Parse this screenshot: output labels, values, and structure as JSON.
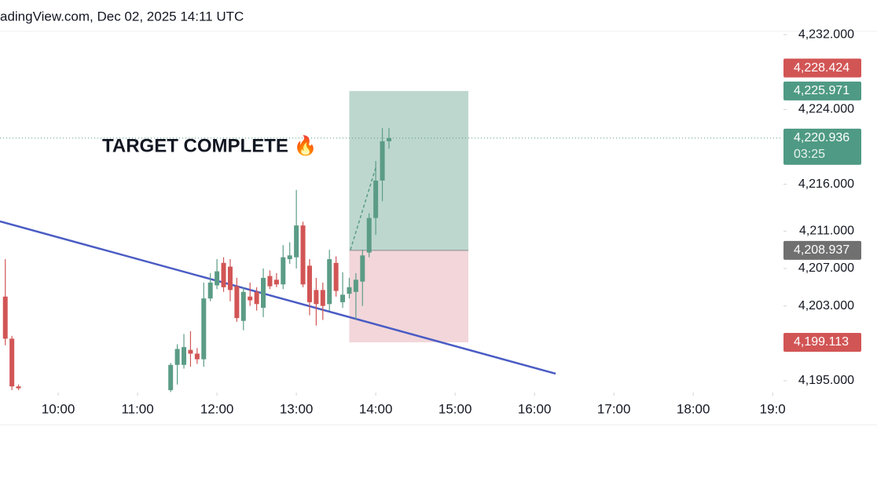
{
  "chart_data": {
    "type": "candlestick",
    "header": "adingView.com, Dec 02, 2025 14:11 UTC",
    "annotation": "TARGET COMPLETE 🔥",
    "up_color": "#5b9c86",
    "down_color": "#d25555",
    "x": [
      560,
      565,
      570,
      685,
      690,
      695,
      700,
      705,
      710,
      715,
      720,
      725,
      730,
      735,
      740,
      745,
      750,
      755,
      760,
      765,
      770,
      775,
      780,
      785,
      790,
      795,
      800,
      805,
      810,
      815,
      820,
      825,
      830,
      835,
      840,
      845,
      850
    ],
    "open": [
      4204.0,
      4199.5,
      4194.4,
      4194.0,
      4196.7,
      4196.7,
      4198.3,
      4197.9,
      4197.3,
      4203.8,
      4205.2,
      4207.6,
      4207.2,
      4205.1,
      4201.4,
      4204.0,
      4204.5,
      4202.8,
      4206.2,
      4205.8,
      4205.3,
      4208.0,
      4208.2,
      4211.6,
      4207.3,
      4204.7,
      4204.7,
      4203.2,
      4207.6,
      4203.4,
      4204.3,
      4204.5,
      4205.6,
      4208.7,
      4212.4,
      4216.4,
      4220.6
    ],
    "high": [
      4208.0,
      4199.8,
      4194.6,
      4196.9,
      4198.9,
      4200.0,
      4200.3,
      4198.5,
      4205.5,
      4206.5,
      4208.0,
      4208.2,
      4208.0,
      4206.0,
      4205.0,
      4205.5,
      4205.0,
      4207.0,
      4206.8,
      4206.5,
      4209.5,
      4209.8,
      4215.4,
      4212.0,
      4208.0,
      4206.0,
      4205.5,
      4209.0,
      4208.3,
      4206.6,
      4206.0,
      4206.5,
      4209.0,
      4212.9,
      4218.5,
      4222.0,
      4222.0
    ],
    "low": [
      4198.8,
      4194.0,
      4194.0,
      4193.8,
      4194.6,
      4196.3,
      4196.5,
      4196.8,
      4196.5,
      4203.5,
      4204.8,
      4204.5,
      4203.5,
      4201.3,
      4200.4,
      4203.0,
      4202.5,
      4201.8,
      4204.8,
      4205.0,
      4204.8,
      4207.5,
      4207.0,
      4205.0,
      4202.0,
      4200.9,
      4201.5,
      4202.5,
      4204.0,
      4202.8,
      4203.8,
      4201.5,
      4203.0,
      4208.2,
      4210.6,
      4214.2,
      4219.8
    ],
    "close": [
      4199.5,
      4194.4,
      4194.2,
      4196.7,
      4198.4,
      4198.6,
      4197.9,
      4197.3,
      4203.8,
      4205.5,
      4206.7,
      4205.0,
      4204.7,
      4201.7,
      4204.5,
      4203.6,
      4203.2,
      4206.0,
      4205.1,
      4205.3,
      4208.2,
      4208.4,
      4211.6,
      4205.3,
      4203.4,
      4203.2,
      4203.0,
      4208.0,
      4204.6,
      4204.2,
      4205.0,
      4205.8,
      4208.4,
      4212.4,
      4216.4,
      4220.6,
      4220.936
    ],
    "xlim": [
      556,
      1147
    ],
    "xticks": [
      {
        "value": 600,
        "label": "10:00"
      },
      {
        "value": 660,
        "label": "11:00"
      },
      {
        "value": 720,
        "label": "12:00"
      },
      {
        "value": 780,
        "label": "13:00"
      },
      {
        "value": 840,
        "label": "14:00"
      },
      {
        "value": 900,
        "label": "15:00"
      },
      {
        "value": 960,
        "label": "16:00"
      },
      {
        "value": 1020,
        "label": "17:00"
      },
      {
        "value": 1080,
        "label": "18:00"
      },
      {
        "value": 1140,
        "label": "19:0"
      }
    ],
    "ylim": [
      4193.74,
      4232.34
    ],
    "yticks": [
      {
        "value": 4232,
        "label": "4,232.000"
      },
      {
        "value": 4224,
        "label": "4,224.000"
      },
      {
        "value": 4216,
        "label": "4,216.000"
      },
      {
        "value": 4211,
        "label": "4,211.000"
      },
      {
        "value": 4207,
        "label": "4,207.000"
      },
      {
        "value": 4203,
        "label": "4,203.000"
      },
      {
        "value": 4195,
        "label": "4,195.000"
      }
    ],
    "trend_line": {
      "color": "#4a5cc4",
      "x": [
        556,
        976
      ],
      "y": [
        4212.04,
        4195.76
      ]
    },
    "position": {
      "x": [
        820,
        910
      ]
    },
    "markers": [
      {
        "value": 4228.424,
        "label": "4,228.424",
        "color": "#d25555"
      },
      {
        "value": 4225.971,
        "label": "4,225.971",
        "color": "#4f9a84"
      },
      {
        "value": 4220.936,
        "label": "4,220.936",
        "sublabel": "03:25",
        "color": "#4f9a84"
      },
      {
        "value": 4208.937,
        "label": "4,208.937",
        "color": "#707070"
      },
      {
        "value": 4199.113,
        "label": "4,199.113",
        "color": "#d25555"
      }
    ]
  }
}
